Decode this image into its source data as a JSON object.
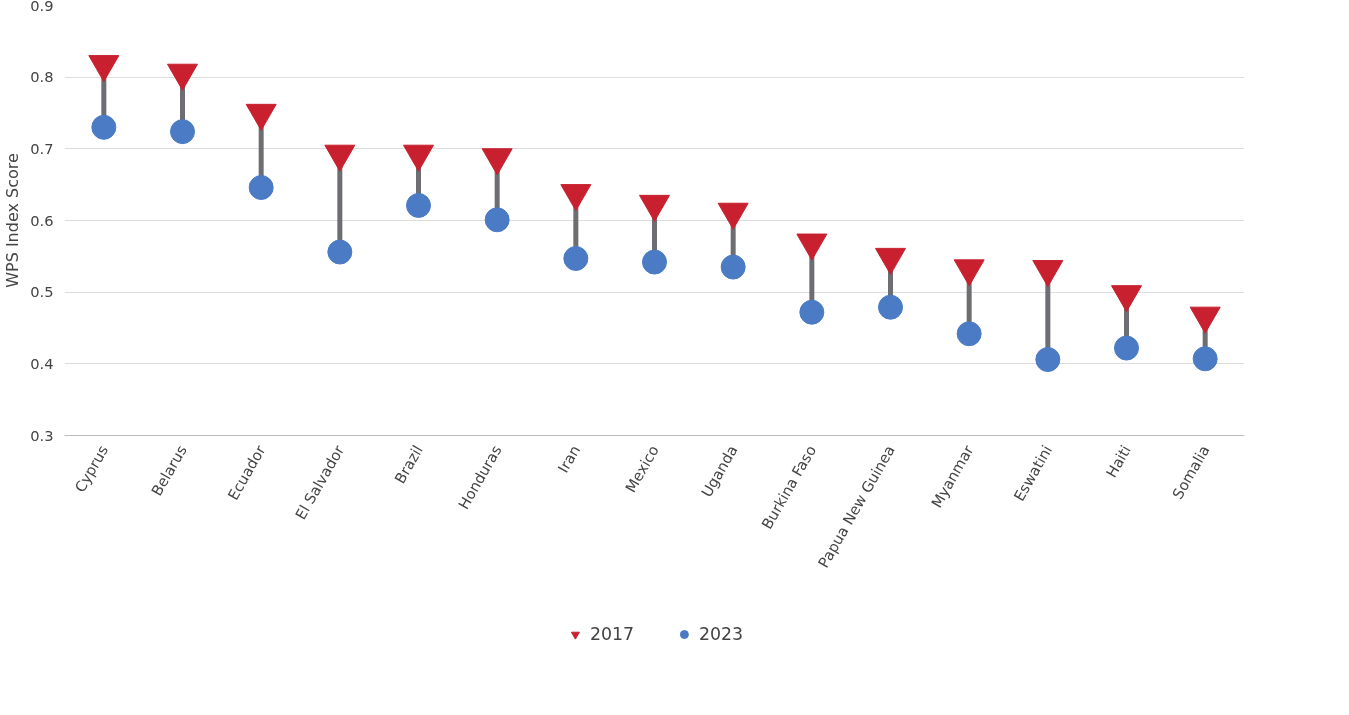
{
  "chart_data": {
    "type": "scatter",
    "ylabel": "WPS Index Score",
    "categories": [
      "Cyprus",
      "Belarus",
      "Ecuador",
      "El Salvador",
      "Brazil",
      "Honduras",
      "Iran",
      "Mexico",
      "Uganda",
      "Burkina Faso",
      "Papua New Guinea",
      "Myanmar",
      "Eswatini",
      "Haiti",
      "Somalia"
    ],
    "series": [
      {
        "name": "2017",
        "color": "#c8202f",
        "marker": "triangle",
        "values": [
          0.818,
          0.806,
          0.75,
          0.693,
          0.693,
          0.688,
          0.638,
          0.623,
          0.612,
          0.569,
          0.549,
          0.533,
          0.532,
          0.497,
          0.467
        ]
      },
      {
        "name": "2023",
        "color": "#4a7bc4",
        "marker": "circle",
        "values": [
          0.73,
          0.724,
          0.646,
          0.556,
          0.621,
          0.601,
          0.547,
          0.542,
          0.535,
          0.472,
          0.479,
          0.442,
          0.406,
          0.422,
          0.407
        ]
      }
    ],
    "ylim": [
      0.3,
      0.9
    ],
    "yticks": [
      0.3,
      0.4,
      0.5,
      0.6,
      0.7,
      0.8,
      0.9
    ],
    "grid": "y",
    "legend": "bottom"
  }
}
